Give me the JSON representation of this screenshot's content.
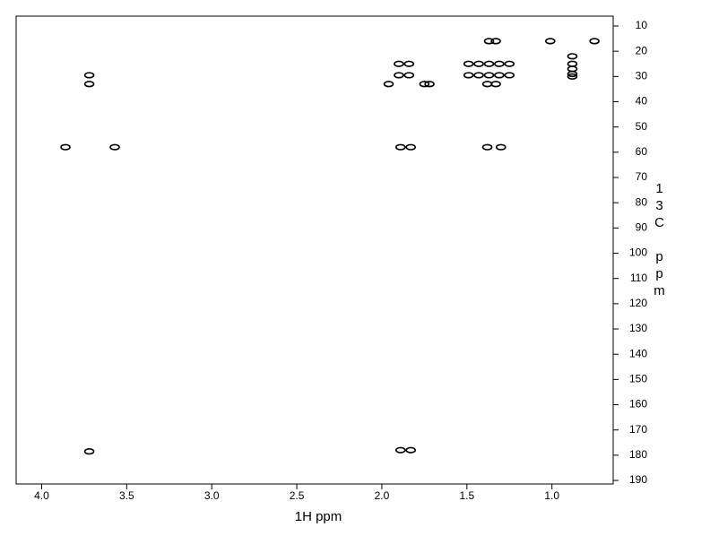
{
  "chart_data": {
    "type": "scatter",
    "x_label": "1H ppm",
    "y_label": "13C ppm",
    "color": "#000000",
    "xlim": [
      4.15,
      0.64
    ],
    "ylim": [
      6.1,
      191.4
    ],
    "xticks": [
      {
        "value": 4,
        "label": "4.0"
      },
      {
        "value": 3.5,
        "label": "3.5"
      },
      {
        "value": 3,
        "label": "3.0"
      },
      {
        "value": 2.5,
        "label": "2.5"
      },
      {
        "value": 2,
        "label": "2.0"
      },
      {
        "value": 1.5,
        "label": "1.5"
      },
      {
        "value": 1,
        "label": "1.0"
      }
    ],
    "yticks": [
      10,
      20,
      30,
      40,
      50,
      60,
      70,
      80,
      90,
      100,
      110,
      120,
      130,
      140,
      150,
      160,
      170,
      180,
      190
    ],
    "x": [
      3.86,
      3.57,
      3.72,
      3.72,
      3.72,
      1.9,
      1.84,
      1.49,
      1.43,
      1.37,
      1.31,
      1.25,
      1.9,
      1.84,
      1.49,
      1.43,
      1.37,
      1.31,
      1.25,
      1.37,
      1.33,
      1.96,
      1.75,
      1.72,
      1.38,
      1.33,
      1.89,
      1.83,
      1.38,
      1.3,
      1.89,
      1.83,
      1.01,
      0.75,
      0.88,
      0.88,
      0.88,
      0.88,
      0.88
    ],
    "y": [
      58,
      58,
      29.5,
      33,
      178.5,
      25,
      25,
      25,
      25,
      25,
      25,
      25,
      29.5,
      29.5,
      29.5,
      29.5,
      29.5,
      29.5,
      29.5,
      16,
      16,
      33,
      33,
      33,
      33,
      33,
      58,
      58,
      58,
      58,
      178,
      178,
      16,
      16,
      22,
      25,
      27,
      29,
      30
    ]
  }
}
